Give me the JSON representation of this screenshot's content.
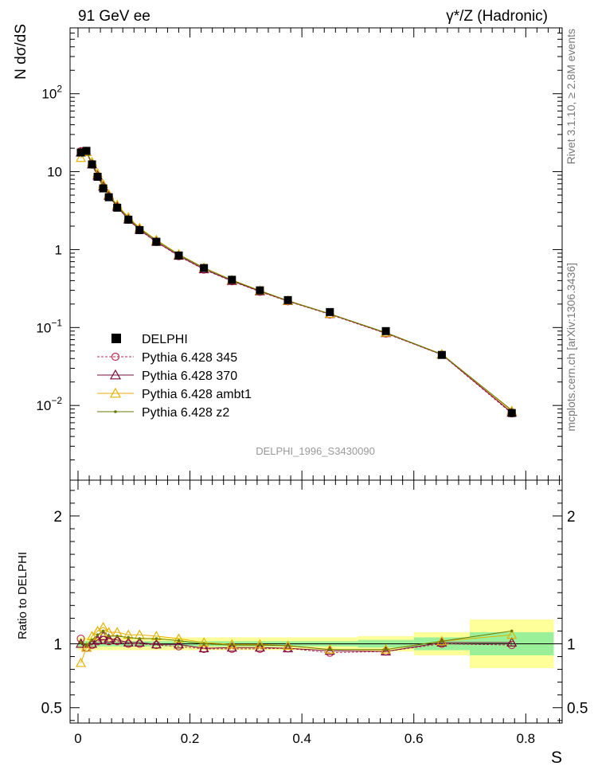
{
  "header": {
    "left": "91 GeV ee",
    "right": "γ*/Z (Hadronic)"
  },
  "side_labels": {
    "rivet": "Rivet 3.1.10, ≥ 2.8M events",
    "mcplots": "mcplots.cern.ch [arXiv:1306.3436]"
  },
  "analysis_id": "DELPHI_1996_S3430090",
  "colors": {
    "delphi": "#000000",
    "p345": "#c0294f",
    "p370": "#7a0c3a",
    "ambt1": "#e3b100",
    "z2": "#6b7a00",
    "band_inner": "#99f099",
    "band_outer": "#ffff99"
  },
  "chart_data": [
    {
      "type": "line",
      "name": "main",
      "ylabel": "N dσ/dS",
      "yscale": "log",
      "ylim": [
        0.0011,
        700
      ],
      "xlim": [
        -0.0142,
        0.865
      ],
      "yticks": [
        {
          "value": 100,
          "base": "10",
          "exp": "2"
        },
        {
          "value": 10,
          "base": "10",
          "exp": ""
        },
        {
          "value": 1,
          "base": "1",
          "exp": ""
        },
        {
          "value": 0.1,
          "base": "10",
          "exp": "−1"
        },
        {
          "value": 0.01,
          "base": "10",
          "exp": "−2"
        }
      ],
      "legend": [
        {
          "key": "delphi",
          "label": "DELPHI",
          "marker": "square-filled",
          "dash": false
        },
        {
          "key": "p345",
          "label": "Pythia 6.428 345",
          "marker": "circle-open",
          "dash": true
        },
        {
          "key": "p370",
          "label": "Pythia 6.428 370",
          "marker": "triangle-open",
          "dash": false
        },
        {
          "key": "ambt1",
          "label": "Pythia 6.428 ambt1",
          "marker": "triangle-open",
          "dash": false
        },
        {
          "key": "z2",
          "label": "Pythia 6.428 z2",
          "marker": "dot",
          "dash": false
        }
      ],
      "x": [
        0.005,
        0.015,
        0.025,
        0.035,
        0.045,
        0.055,
        0.07,
        0.09,
        0.11,
        0.14,
        0.18,
        0.225,
        0.275,
        0.325,
        0.375,
        0.45,
        0.55,
        0.65,
        0.775
      ],
      "series": [
        {
          "key": "delphi",
          "values": [
            17.6,
            18.5,
            12.4,
            8.6,
            6.1,
            4.7,
            3.45,
            2.42,
            1.78,
            1.26,
            0.84,
            0.58,
            0.41,
            0.3,
            0.225,
            0.158,
            0.09,
            0.0445,
            0.008
          ]
        },
        {
          "key": "p345",
          "values": [
            18.3,
            17.9,
            12.3,
            8.75,
            6.3,
            4.8,
            3.52,
            2.42,
            1.78,
            1.25,
            0.825,
            0.555,
            0.393,
            0.288,
            0.217,
            0.147,
            0.084,
            0.0448,
            0.0079
          ]
        },
        {
          "key": "p370",
          "values": [
            17.6,
            18.0,
            12.4,
            8.9,
            6.45,
            4.9,
            3.55,
            2.44,
            1.8,
            1.26,
            0.835,
            0.56,
            0.397,
            0.292,
            0.219,
            0.149,
            0.085,
            0.045,
            0.0081
          ]
        },
        {
          "key": "ambt1",
          "values": [
            15.0,
            17.9,
            13.2,
            9.5,
            6.9,
            5.1,
            3.75,
            2.6,
            1.9,
            1.33,
            0.87,
            0.585,
            0.408,
            0.298,
            0.221,
            0.15,
            0.086,
            0.0455,
            0.0085
          ]
        },
        {
          "key": "z2",
          "values": [
            17.8,
            18.3,
            12.8,
            9.2,
            6.7,
            5.0,
            3.66,
            2.55,
            1.86,
            1.31,
            0.86,
            0.58,
            0.405,
            0.297,
            0.221,
            0.15,
            0.086,
            0.0455,
            0.0087
          ]
        }
      ]
    },
    {
      "type": "line",
      "name": "ratio",
      "ylabel": "Ratio to DELPHI",
      "xlabel": "S",
      "ylim": [
        0.38,
        2.28
      ],
      "xlim": [
        -0.0142,
        0.865
      ],
      "yticks": [
        2,
        1,
        0.5
      ],
      "xticks": [
        0,
        0.2,
        0.4,
        0.6,
        0.8
      ],
      "bands": [
        {
          "x0": 0.0,
          "x1": 0.5,
          "inner": 0.02,
          "outer": 0.05
        },
        {
          "x0": 0.5,
          "x1": 0.6,
          "inner": 0.03,
          "outer": 0.06
        },
        {
          "x0": 0.6,
          "x1": 0.7,
          "inner": 0.05,
          "outer": 0.09
        },
        {
          "x0": 0.7,
          "x1": 0.85,
          "inner": 0.09,
          "outer": 0.19
        }
      ],
      "series": [
        {
          "key": "p345",
          "values": [
            1.04,
            0.97,
            0.99,
            1.02,
            1.03,
            1.02,
            1.02,
            1.0,
            1.0,
            0.99,
            0.98,
            0.96,
            0.96,
            0.96,
            0.965,
            0.93,
            0.94,
            1.0,
            0.99
          ]
        },
        {
          "key": "p370",
          "values": [
            1.0,
            0.97,
            1.0,
            1.03,
            1.06,
            1.04,
            1.03,
            1.01,
            1.01,
            0.995,
            0.995,
            0.965,
            0.97,
            0.97,
            0.965,
            0.945,
            0.94,
            1.01,
            1.01
          ]
        },
        {
          "key": "ambt1",
          "values": [
            0.85,
            0.97,
            1.06,
            1.1,
            1.13,
            1.09,
            1.09,
            1.07,
            1.07,
            1.06,
            1.04,
            1.01,
            0.995,
            0.995,
            0.985,
            0.955,
            0.955,
            1.02,
            1.07
          ]
        },
        {
          "key": "z2",
          "values": [
            1.01,
            0.99,
            1.03,
            1.07,
            1.1,
            1.06,
            1.06,
            1.05,
            1.04,
            1.04,
            1.025,
            1.0,
            0.99,
            0.99,
            0.985,
            0.955,
            0.955,
            1.02,
            1.1
          ]
        }
      ]
    }
  ]
}
